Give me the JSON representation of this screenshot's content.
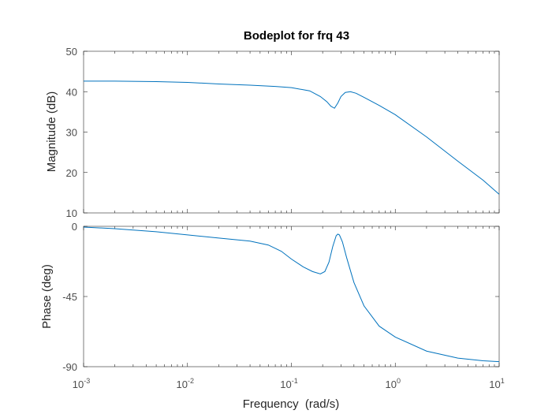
{
  "chart_data": [
    {
      "type": "line",
      "title": "Bodeplot for frq 43",
      "ylabel": "Magnitude (dB)",
      "xlabel": "",
      "xscale": "log",
      "xlim": [
        0.001,
        10
      ],
      "ylim": [
        10,
        50
      ],
      "yticks": [
        "10",
        "20",
        "30",
        "40",
        "50"
      ],
      "grid": false,
      "series": [
        {
          "color": "#0072bd",
          "x": [
            0.001,
            0.002,
            0.005,
            0.01,
            0.02,
            0.04,
            0.07,
            0.1,
            0.15,
            0.19,
            0.22,
            0.24,
            0.26,
            0.28,
            0.3,
            0.33,
            0.37,
            0.42,
            0.5,
            0.7,
            1,
            2,
            4,
            7,
            10
          ],
          "y": [
            42.6,
            42.6,
            42.5,
            42.3,
            41.9,
            41.6,
            41.3,
            41.0,
            40.2,
            38.8,
            37.5,
            36.4,
            35.9,
            37.2,
            38.8,
            39.8,
            40.0,
            39.6,
            38.6,
            36.6,
            34.3,
            28.8,
            22.8,
            18.1,
            14.6
          ]
        }
      ]
    },
    {
      "type": "line",
      "title": "",
      "xlabel": "Frequency  (rad/s)",
      "ylabel": "Phase (deg)",
      "xscale": "log",
      "xlim": [
        0.001,
        10
      ],
      "ylim": [
        -90,
        0
      ],
      "yticks": [
        "-90",
        "-45",
        "0"
      ],
      "xticks": [
        {
          "base": "10",
          "exp": "-3"
        },
        {
          "base": "10",
          "exp": "-2"
        },
        {
          "base": "10",
          "exp": "-1"
        },
        {
          "base": "10",
          "exp": "0"
        },
        {
          "base": "10",
          "exp": "1"
        }
      ],
      "grid": false,
      "series": [
        {
          "color": "#0072bd",
          "x": [
            0.001,
            0.002,
            0.005,
            0.01,
            0.02,
            0.04,
            0.06,
            0.08,
            0.1,
            0.13,
            0.16,
            0.19,
            0.21,
            0.23,
            0.25,
            0.27,
            0.28,
            0.29,
            0.31,
            0.34,
            0.4,
            0.5,
            0.7,
            1,
            2,
            4,
            7,
            10
          ],
          "y": [
            -0.5,
            -1.5,
            -3.5,
            -5.5,
            -7.5,
            -9.5,
            -12,
            -16,
            -21,
            -26,
            -29,
            -30.5,
            -29,
            -23,
            -13,
            -6,
            -5,
            -5.5,
            -10,
            -20,
            -36,
            -51,
            -64,
            -71,
            -80,
            -84.5,
            -86.2,
            -86.8
          ]
        }
      ]
    }
  ]
}
